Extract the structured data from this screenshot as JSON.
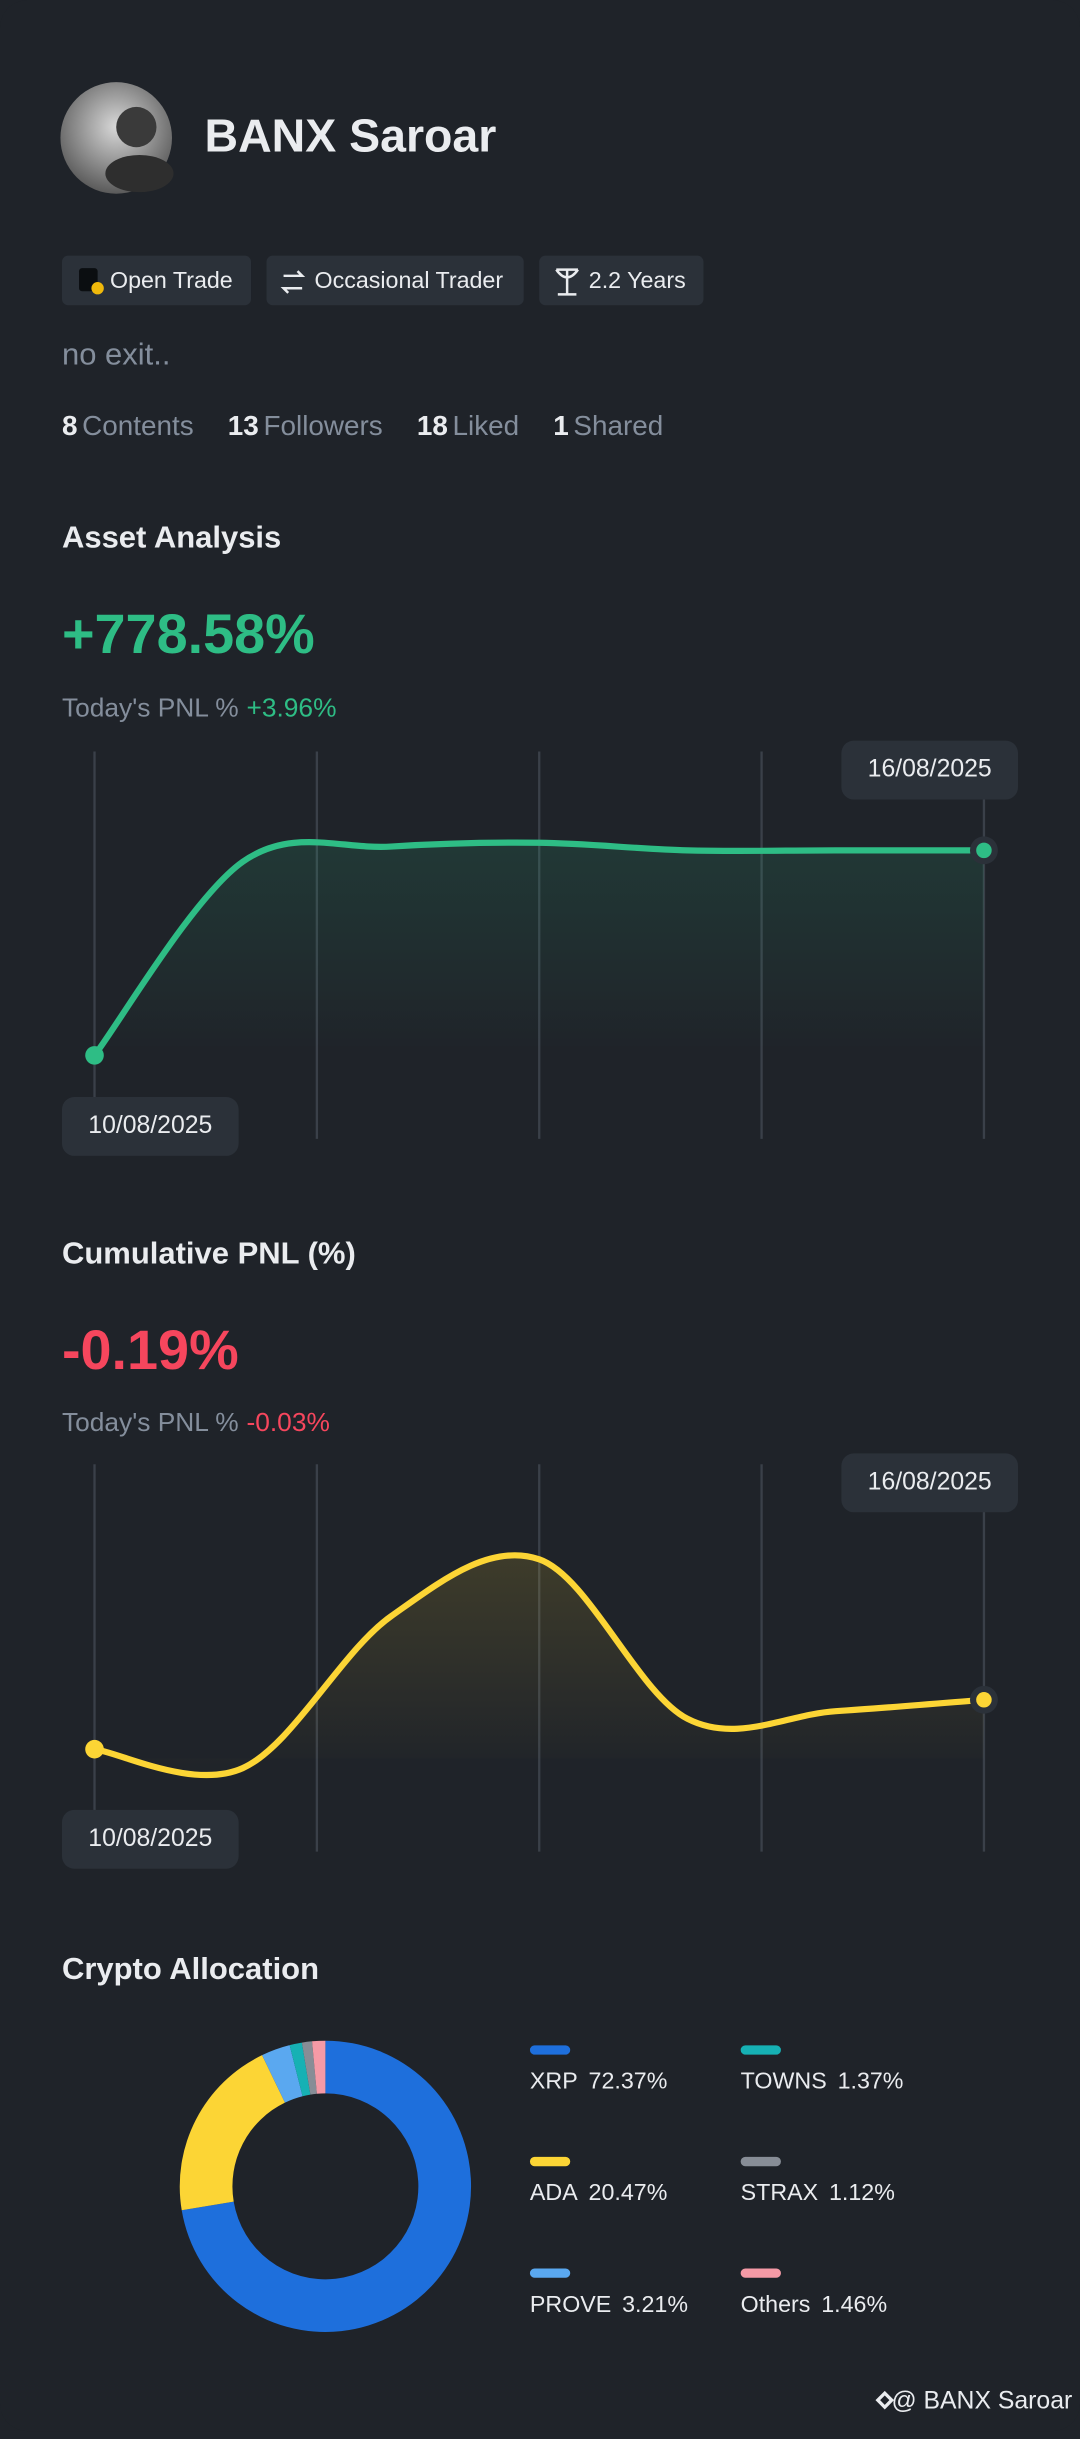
{
  "profile": {
    "name": "BANX Saroar",
    "badges": [
      "Open Trade",
      "Occasional Trader",
      "2.2 Years"
    ],
    "bio": "no exit..",
    "stats": [
      {
        "value": 8,
        "label": "Contents"
      },
      {
        "value": 13,
        "label": "Followers"
      },
      {
        "value": 18,
        "label": "Liked"
      },
      {
        "value": 1,
        "label": "Shared"
      }
    ]
  },
  "asset_analysis": {
    "title": "Asset Analysis",
    "total": "+778.58%",
    "today_label": "Today's PNL %",
    "today": "+3.96%",
    "chart_data": {
      "type": "line",
      "categories": [
        "10/08/2025",
        null,
        null,
        null,
        null,
        null,
        "16/08/2025"
      ],
      "values": [
        22,
        73,
        77,
        78,
        76,
        76,
        76
      ],
      "ylim": [
        0,
        100
      ],
      "color": "#2ebd85"
    }
  },
  "cumulative_pnl": {
    "title": "Cumulative PNL (%)",
    "total": "-0.19%",
    "today_label": "Today's PNL %",
    "today": "-0.03%",
    "chart_data": {
      "type": "line",
      "categories": [
        "10/08/2025",
        null,
        null,
        null,
        null,
        null,
        "16/08/2025"
      ],
      "values": [
        27,
        22,
        62,
        77,
        35,
        37,
        40
      ],
      "ylim": [
        0,
        100
      ],
      "color": "#fcd535"
    }
  },
  "crypto_allocation": {
    "title": "Crypto Allocation",
    "chart_data": {
      "type": "donut",
      "categories": [
        "XRP",
        "ADA",
        "PROVE",
        "TOWNS",
        "STRAX",
        "Others"
      ],
      "values": [
        72.37,
        20.47,
        3.21,
        1.37,
        1.12,
        1.46
      ],
      "value_labels": [
        "72.37%",
        "20.47%",
        "3.21%",
        "1.37%",
        "1.12%",
        "1.46%"
      ],
      "colors": [
        "#1e6fdc",
        "#fcd535",
        "#5aa8f0",
        "#16b1b4",
        "#878d96",
        "#f59aa6"
      ]
    }
  },
  "footer": "@ BANX Saroar"
}
